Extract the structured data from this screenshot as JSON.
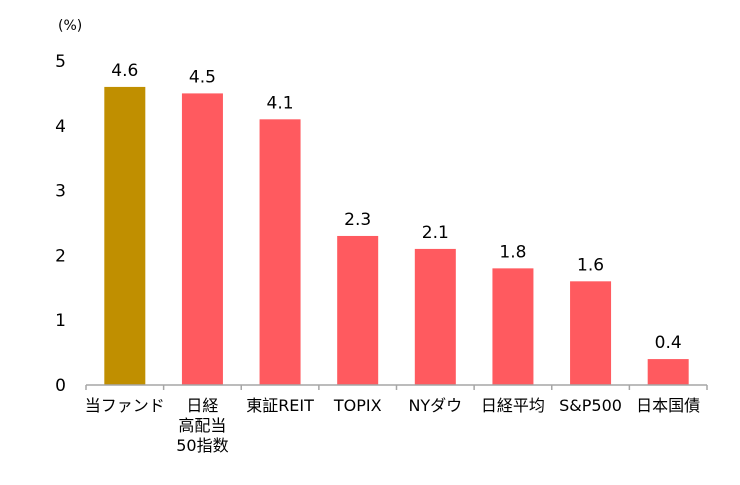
{
  "chart_data": {
    "type": "bar",
    "unit_label": "(%)",
    "categories": [
      [
        "当ファンド"
      ],
      [
        "日経",
        "高配当",
        "50指数"
      ],
      [
        "東証REIT"
      ],
      [
        "TOPIX"
      ],
      [
        "NYダウ"
      ],
      [
        "日経平均"
      ],
      [
        "S&P500"
      ],
      [
        "日本国債"
      ]
    ],
    "values": [
      4.6,
      4.5,
      4.1,
      2.3,
      2.1,
      1.8,
      1.6,
      0.4
    ],
    "value_labels": [
      "4.6",
      "4.5",
      "4.1",
      "2.3",
      "2.1",
      "1.8",
      "1.6",
      "0.4"
    ],
    "ylim": [
      0,
      5
    ],
    "yticks": [
      "0",
      "1",
      "2",
      "3",
      "4",
      "5"
    ],
    "grid": false,
    "colors": {
      "highlight": "#C08F00",
      "default": "#FF5A5F",
      "axis": "#A6A6A6"
    }
  }
}
